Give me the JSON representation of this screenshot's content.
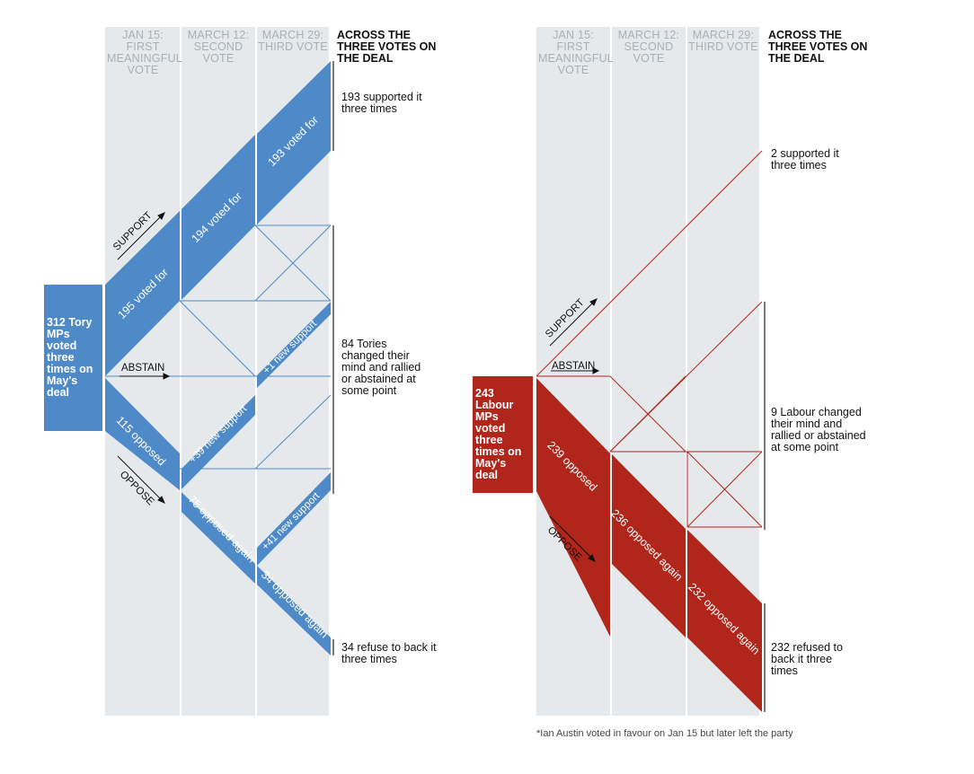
{
  "column_headers": [
    "JAN 15: FIRST MEANINGFUL VOTE",
    "MARCH 12: SECOND VOTE",
    "MARCH 29: THIRD VOTE"
  ],
  "summary_header": "ACROSS THE THREE VOTES ON THE DEAL",
  "directions": {
    "support": "SUPPORT",
    "abstain": "ABSTAIN",
    "oppose": "OPPOSE"
  },
  "colors": {
    "tory": "#4f8ac8",
    "labour": "#b0261b",
    "column_bg": "#e6e9eb"
  },
  "tory": {
    "box": "312 Tory MPs voted three times on May's deal",
    "flows": {
      "voted_for_1": "195 voted for",
      "voted_for_2": "194 voted for",
      "voted_for_3": "193 voted for",
      "opposed_1": "115 opposed",
      "opposed_2": "75 opposed again",
      "opposed_3": "34 opposed again",
      "new_support_39": "+39 new support",
      "new_support_1": "+1 new support",
      "new_support_41": "+41 new support"
    },
    "notes": {
      "supported": "193 supported it three times",
      "changed": "84 Tories changed their mind and rallied or abstained at some point",
      "refused": "34 refuse to back it three times"
    }
  },
  "labour": {
    "box": "243 Labour MPs voted three times on May's deal",
    "flows": {
      "opposed_1": "239 opposed",
      "opposed_2": "236 opposed again",
      "opposed_3": "232 opposed again"
    },
    "notes": {
      "supported": "2 supported it three times",
      "changed": "9 Labour changed their mind and rallied or abstained at some point",
      "refused": "232 refused to back it three times"
    }
  },
  "footnote": "*Ian Austin voted in favour on Jan 15 but later left the party"
}
